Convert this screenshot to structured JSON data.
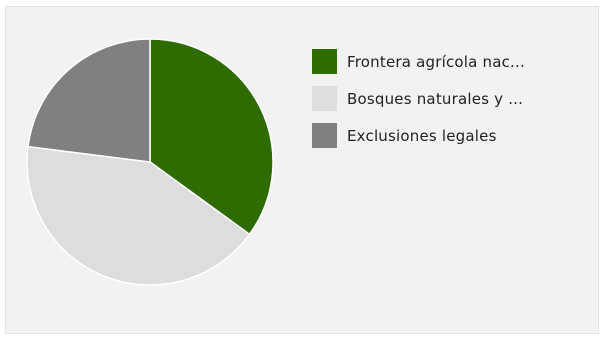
{
  "chart_data": {
    "type": "pie",
    "title": "",
    "slices": [
      {
        "label": "Frontera agrícola nac...",
        "value": 35,
        "color": "#2e6b00"
      },
      {
        "label": "Bosques naturales y ...",
        "value": 42,
        "color": "#dddddd"
      },
      {
        "label": "Exclusiones legales",
        "value": 23,
        "color": "#808080"
      }
    ],
    "start_angle_deg": 0,
    "direction": "clockwise",
    "legend": "right"
  }
}
